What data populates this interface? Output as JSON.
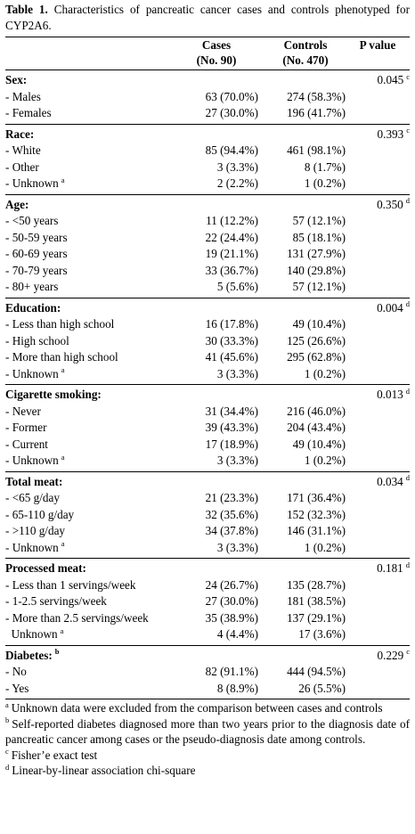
{
  "title": {
    "lead": "Table 1.",
    "text": "Characteristics of pancreatic cancer cases and controls phenotyped for CYP2A6."
  },
  "columns": {
    "cases": "Cases",
    "cases_n": "(No. 90)",
    "controls": "Controls",
    "controls_n": "(No. 470)",
    "pvalue": "P value"
  },
  "sections": [
    {
      "title": "Sex:",
      "sup": "",
      "p": "0.045",
      "p_mark": "c",
      "rows": [
        {
          "label": "- Males",
          "mark": "",
          "cases": "63 (70.0%)",
          "controls": "274 (58.3%)"
        },
        {
          "label": "- Females",
          "mark": "",
          "cases": "27 (30.0%)",
          "controls": "196 (41.7%)"
        }
      ]
    },
    {
      "title": "Race:",
      "sup": "",
      "p": "0.393",
      "p_mark": "c",
      "rows": [
        {
          "label": "- White",
          "mark": "",
          "cases": "85 (94.4%)",
          "controls": "461 (98.1%)"
        },
        {
          "label": "- Other",
          "mark": "",
          "cases": "3 (3.3%)",
          "controls": "8 (1.7%)"
        },
        {
          "label": "- Unknown",
          "mark": "a",
          "cases": "2 (2.2%)",
          "controls": "1 (0.2%)"
        }
      ]
    },
    {
      "title": "Age:",
      "sup": "",
      "p": "0.350",
      "p_mark": "d",
      "rows": [
        {
          "label": "- <50 years",
          "mark": "",
          "cases": "11 (12.2%)",
          "controls": "57 (12.1%)"
        },
        {
          "label": "- 50-59 years",
          "mark": "",
          "cases": "22 (24.4%)",
          "controls": "85 (18.1%)"
        },
        {
          "label": "- 60-69 years",
          "mark": "",
          "cases": "19 (21.1%)",
          "controls": "131 (27.9%)"
        },
        {
          "label": "- 70-79 years",
          "mark": "",
          "cases": "33 (36.7%)",
          "controls": "140 (29.8%)"
        },
        {
          "label": "- 80+ years",
          "mark": "",
          "cases": "5 (5.6%)",
          "controls": "57 (12.1%)"
        }
      ]
    },
    {
      "title": "Education:",
      "sup": "",
      "p": "0.004",
      "p_mark": "d",
      "rows": [
        {
          "label": "- Less than high school",
          "mark": "",
          "cases": "16 (17.8%)",
          "controls": "49 (10.4%)"
        },
        {
          "label": "- High school",
          "mark": "",
          "cases": "30 (33.3%)",
          "controls": "125 (26.6%)"
        },
        {
          "label": "- More than high school",
          "mark": "",
          "cases": "41 (45.6%)",
          "controls": "295 (62.8%)"
        },
        {
          "label": "- Unknown",
          "mark": "a",
          "cases": "3 (3.3%)",
          "controls": "1 (0.2%)"
        }
      ]
    },
    {
      "title": "Cigarette smoking:",
      "sup": "",
      "p": "0.013",
      "p_mark": "d",
      "rows": [
        {
          "label": "- Never",
          "mark": "",
          "cases": "31 (34.4%)",
          "controls": "216 (46.0%)"
        },
        {
          "label": "- Former",
          "mark": "",
          "cases": "39 (43.3%)",
          "controls": "204 (43.4%)"
        },
        {
          "label": "- Current",
          "mark": "",
          "cases": "17 (18.9%)",
          "controls": "49 (10.4%)"
        },
        {
          "label": "- Unknown",
          "mark": "a",
          "cases": "3 (3.3%)",
          "controls": "1 (0.2%)"
        }
      ]
    },
    {
      "title": "Total meat:",
      "sup": "",
      "p": "0.034",
      "p_mark": "d",
      "rows": [
        {
          "label": "- <65 g/day",
          "mark": "",
          "cases": "21 (23.3%)",
          "controls": "171 (36.4%)"
        },
        {
          "label": "- 65-110 g/day",
          "mark": "",
          "cases": "32 (35.6%)",
          "controls": "152 (32.3%)"
        },
        {
          "label": "- >110 g/day",
          "mark": "",
          "cases": "34 (37.8%)",
          "controls": "146 (31.1%)"
        },
        {
          "label": "- Unknown",
          "mark": "a",
          "cases": "3 (3.3%)",
          "controls": "1 (0.2%)"
        }
      ]
    },
    {
      "title": "Processed meat:",
      "sup": "",
      "p": "0.181",
      "p_mark": "d",
      "rows": [
        {
          "label": "- Less than 1 servings/week",
          "mark": "",
          "cases": "24 (26.7%)",
          "controls": "135 (28.7%)"
        },
        {
          "label": "- 1-2.5 servings/week",
          "mark": "",
          "cases": "27 (30.0%)",
          "controls": "181 (38.5%)"
        },
        {
          "label": "- More than 2.5 servings/week",
          "mark": "",
          "cases": "35 (38.9%)",
          "controls": "137 (29.1%)"
        },
        {
          "label": "  Unknown",
          "mark": "a",
          "cases": "4 (4.4%)",
          "controls": "17 (3.6%)"
        }
      ]
    },
    {
      "title": "Diabetes:",
      "sup": "b",
      "p": "0.229",
      "p_mark": "c",
      "rows": [
        {
          "label": "- No",
          "mark": "",
          "cases": "82 (91.1%)",
          "controls": "444 (94.5%)"
        },
        {
          "label": "- Yes",
          "mark": "",
          "cases": "8 (8.9%)",
          "controls": "26 (5.5%)"
        }
      ]
    }
  ],
  "footnotes": [
    {
      "mark": "a",
      "text": "Unknown data were excluded from the comparison between cases and controls"
    },
    {
      "mark": "b",
      "text": "Self-reported diabetes diagnosed more than two years prior to the diagnosis date of pancreatic cancer among cases or the pseudo-diagnosis date among controls."
    },
    {
      "mark": "c",
      "text": "Fisher’e exact test"
    },
    {
      "mark": "d",
      "text": "Linear-by-linear association chi-square"
    }
  ]
}
